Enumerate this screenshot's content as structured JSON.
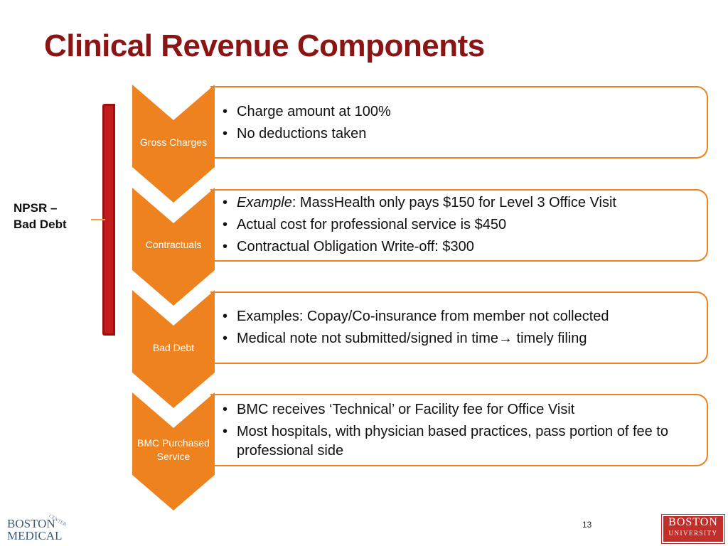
{
  "slide": {
    "title": "Clinical Revenue Components",
    "page_number": "13"
  },
  "bracket": {
    "label_line1": "NPSR –",
    "label_line2": "Bad Debt"
  },
  "steps": [
    {
      "name": "Gross Charges",
      "bullets": [
        "Charge amount at 100%",
        "No deductions taken"
      ]
    },
    {
      "name": "Contractuals",
      "bullet1_italic": "Example",
      "bullet1_rest": ":  MassHealth only pays $150 for Level 3 Office Visit",
      "bullets": [
        "Actual cost for professional service is $450",
        "Contractual Obligation Write-off:  $300"
      ]
    },
    {
      "name": "Bad Debt",
      "bullets": [
        "Examples:  Copay/Co-insurance from member not collected"
      ],
      "bullet2_before_arrow": "Medical note not submitted/signed in time",
      "bullet2_after_arrow": " timely filing"
    },
    {
      "name_line1": "BMC Purchased",
      "name_line2": "Service",
      "bullets": [
        "BMC receives ‘Technical’ or Facility fee for Office Visit",
        "Most hospitals, with physician based practices, pass portion of fee to professional side"
      ]
    }
  ],
  "logos": {
    "left": "BOSTON MEDICAL",
    "left_arc": "CENTER",
    "right_line1": "BOSTON",
    "right_line2": "UNIVERSITY"
  },
  "colors": {
    "title": "#8b1414",
    "chevron": "#ee821f",
    "bracket": "#c01c1c"
  }
}
